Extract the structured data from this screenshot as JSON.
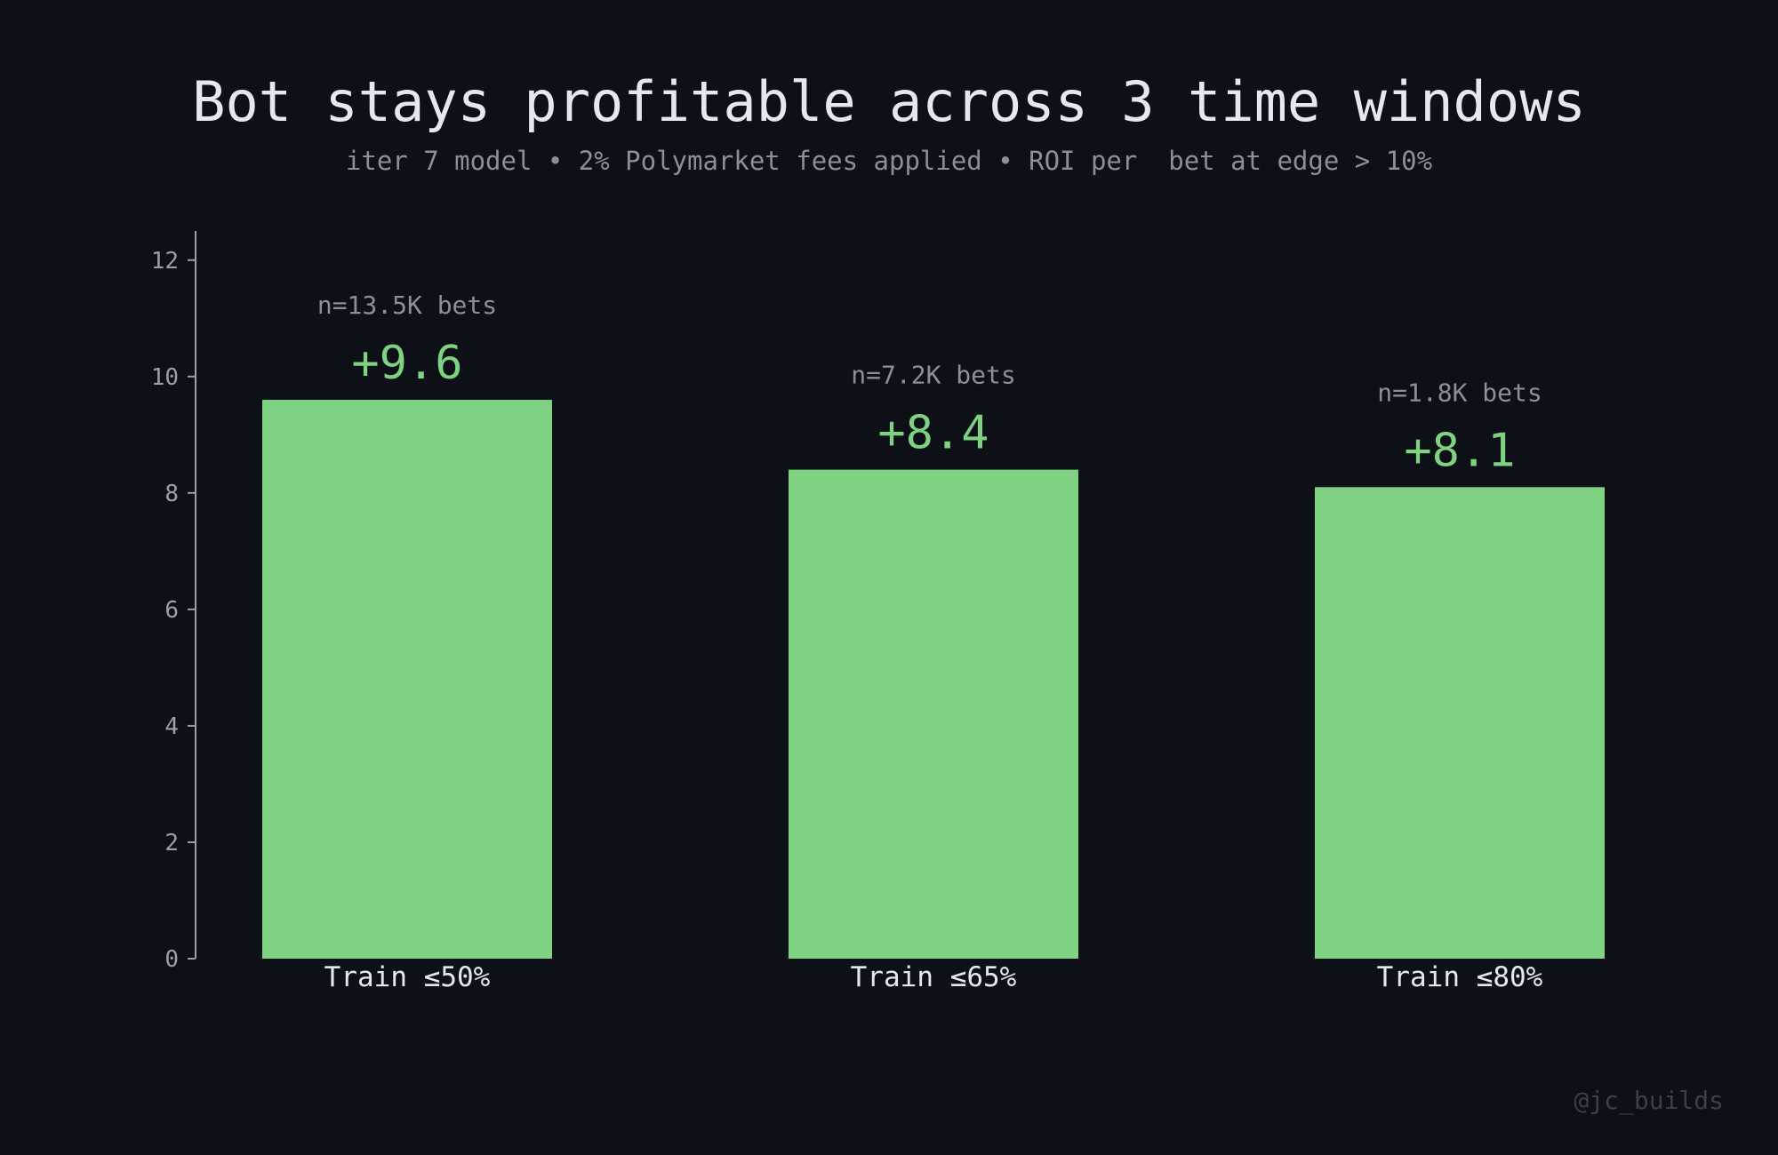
{
  "title": "Bot stays profitable across 3 time windows",
  "subtitle": "iter 7 model • 2% Polymarket fees applied • ROI per  bet at edge > 10%",
  "watermark": "@jc_builds",
  "colors": {
    "background": "#0d1017",
    "bar": "#7fd282",
    "value_label": "#7fd282",
    "count_label": "#8a8f99",
    "axis": "#9aa0aa",
    "category_label": "#e6e8ee"
  },
  "chart_data": {
    "type": "bar",
    "categories": [
      "Train ≤50%",
      "Train ≤65%",
      "Train ≤80%"
    ],
    "values": [
      9.6,
      8.4,
      8.1
    ],
    "value_labels": [
      "+9.6",
      "+8.4",
      "+8.1"
    ],
    "count_labels": [
      "n=13.5K bets",
      "n=7.2K bets",
      "n=1.8K bets"
    ],
    "yticks": [
      0,
      2,
      4,
      6,
      8,
      10,
      12
    ],
    "ylim": [
      0,
      12.5
    ],
    "grid": false,
    "legend": "none"
  }
}
